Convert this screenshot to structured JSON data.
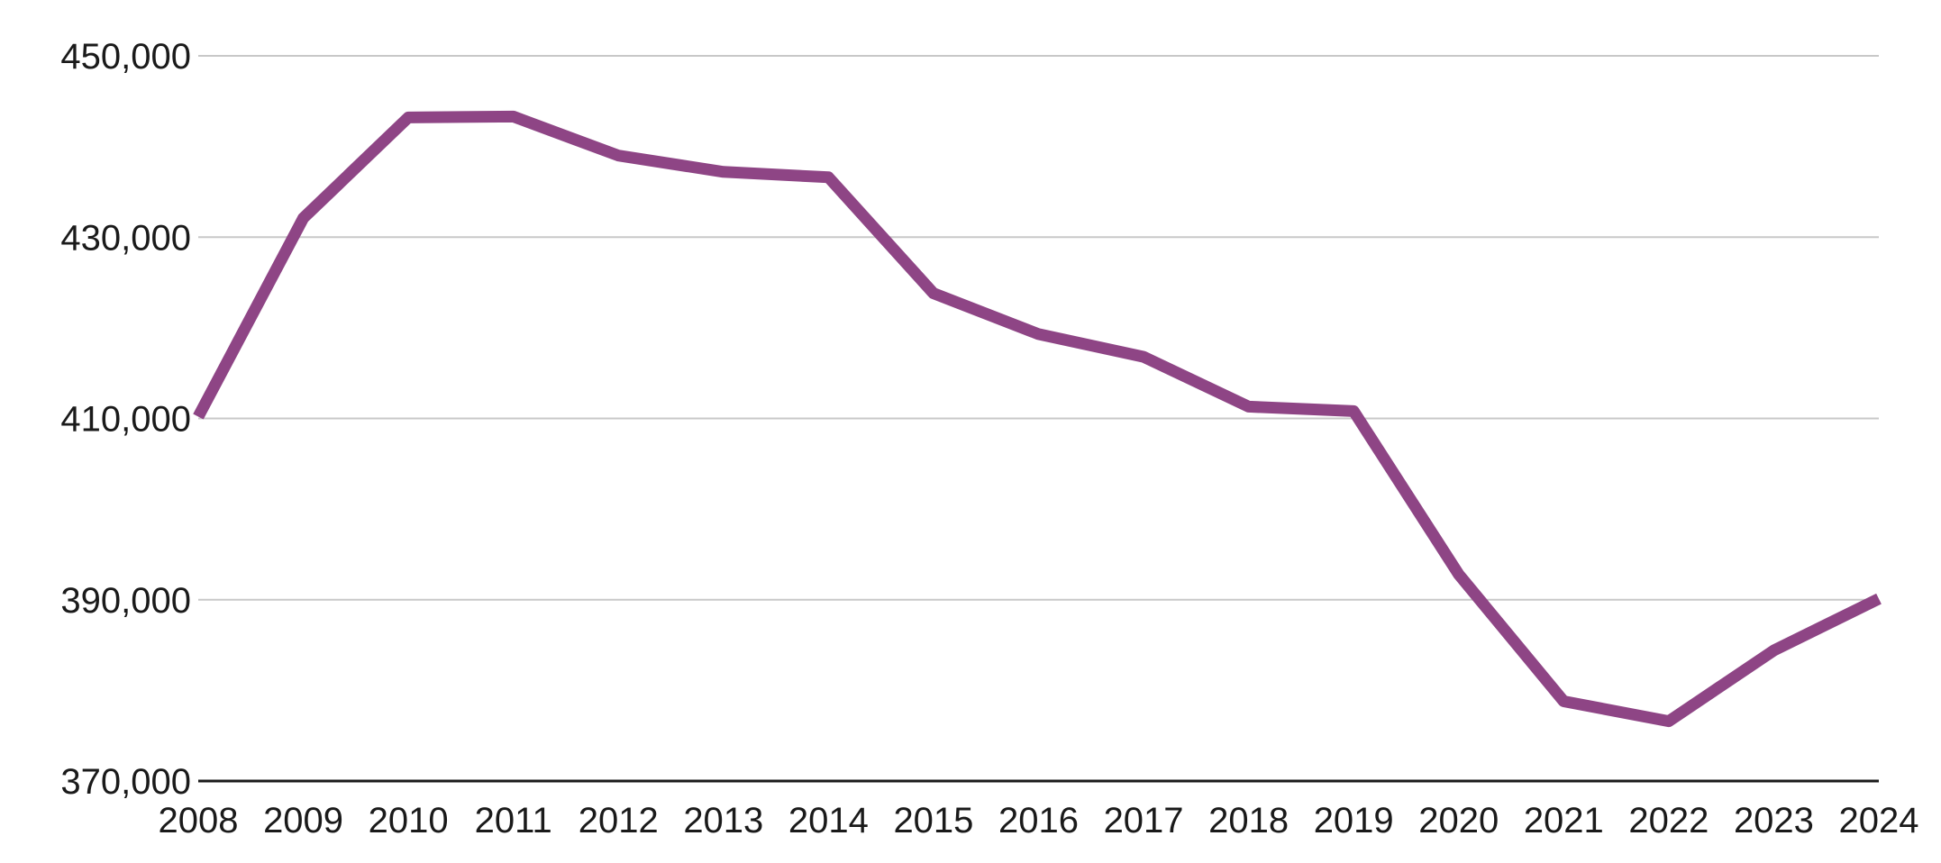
{
  "chart_data": {
    "type": "line",
    "title": "",
    "xlabel": "",
    "ylabel": "",
    "x": [
      "2008",
      "2009",
      "2010",
      "2011",
      "2012",
      "2013",
      "2014",
      "2015",
      "2016",
      "2017",
      "2018",
      "2019",
      "2020",
      "2021",
      "2022",
      "2023",
      "2024"
    ],
    "series": [
      {
        "values": [
          410200,
          432100,
          443200,
          443300,
          439000,
          437200,
          436600,
          423800,
          419300,
          416800,
          411300,
          410800,
          392800,
          378800,
          376600,
          384400,
          390100
        ]
      }
    ],
    "ylim": [
      370000,
      450000
    ],
    "yticks": [
      370000,
      390000,
      410000,
      430000,
      450000
    ],
    "ytick_labels": [
      "370,000",
      "390,000",
      "410,000",
      "430,000",
      "450,000"
    ],
    "grid": true,
    "legend": "none",
    "colors": {
      "series": "#8e4585",
      "grid": "#c8c8c8",
      "axis": "#1a1a1a"
    }
  }
}
